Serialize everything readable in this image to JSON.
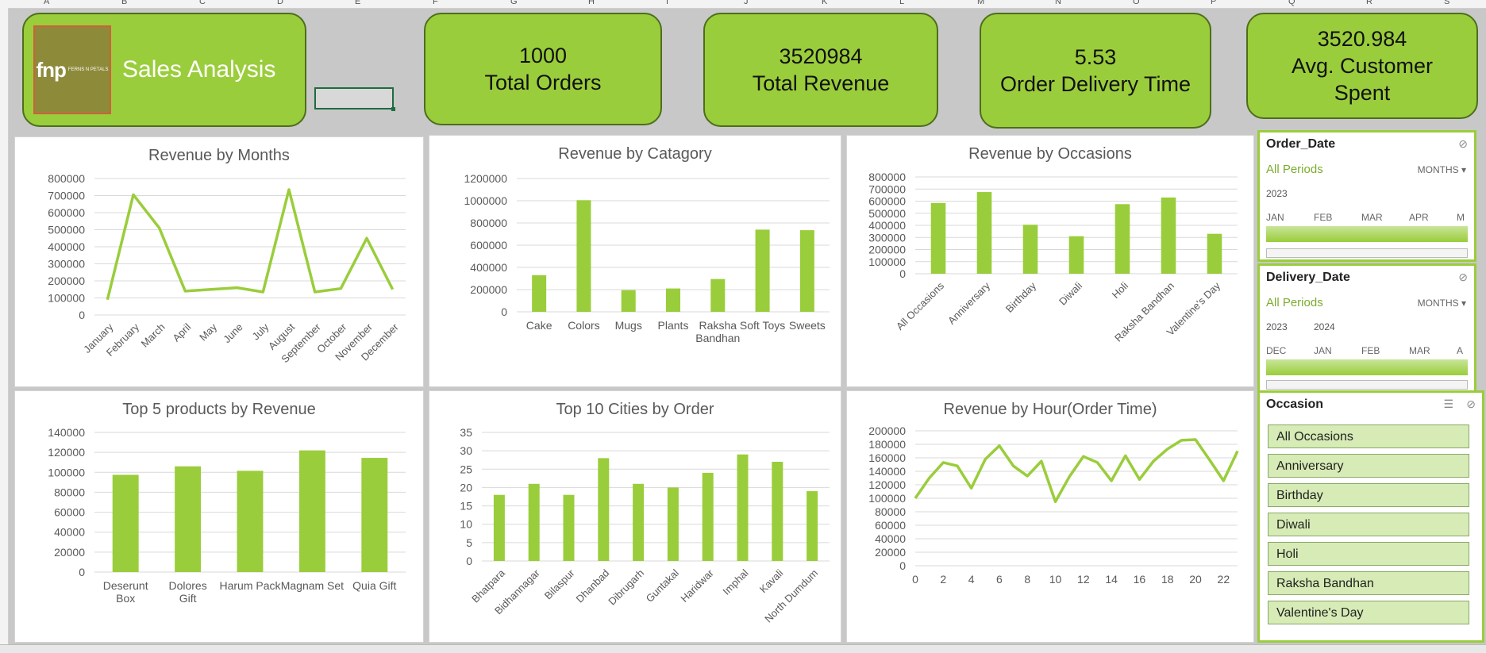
{
  "sheet": {
    "columns": [
      "A",
      "B",
      "C",
      "D",
      "E",
      "F",
      "G",
      "H",
      "I",
      "J",
      "K",
      "L",
      "M",
      "N",
      "O",
      "P",
      "Q",
      "R",
      "S"
    ]
  },
  "header": {
    "logo_text": "fnp",
    "logo_tagline": "FERNS N PETALS",
    "title": "Sales Analysis"
  },
  "kpis": [
    {
      "value": "1000",
      "label": "Total Orders"
    },
    {
      "value": "3520984",
      "label": "Total Revenue"
    },
    {
      "value": "5.53",
      "label": "Order Delivery Time"
    },
    {
      "value": "3520.984",
      "label": "Avg. Customer Spent"
    }
  ],
  "chart_data": [
    {
      "type": "line",
      "title": "Revenue by Months",
      "categories": [
        "January",
        "February",
        "March",
        "April",
        "May",
        "June",
        "July",
        "August",
        "September",
        "October",
        "November",
        "December"
      ],
      "values": [
        90000,
        705000,
        510000,
        140000,
        150000,
        160000,
        135000,
        735000,
        135000,
        155000,
        450000,
        150000
      ],
      "ylim": [
        0,
        800000
      ],
      "yticks": [
        "800000",
        "700000",
        "600000",
        "500000",
        "400000",
        "300000",
        "200000",
        "100000",
        "0"
      ],
      "color": "#9acd3b"
    },
    {
      "type": "bar",
      "title": "Revenue by Catagory",
      "categories": [
        "Cake",
        "Colors",
        "Mugs",
        "Plants",
        "Raksha Bandhan",
        "Soft Toys",
        "Sweets"
      ],
      "values": [
        330000,
        1005000,
        195000,
        210000,
        295000,
        740000,
        735000
      ],
      "ylim": [
        0,
        1200000
      ],
      "yticks": [
        "1200000",
        "1000000",
        "800000",
        "600000",
        "400000",
        "200000",
        "0"
      ],
      "color": "#9acd3b"
    },
    {
      "type": "bar",
      "title": "Revenue by Occasions",
      "categories": [
        "All Occasions",
        "Anniversary",
        "Birthday",
        "Diwali",
        "Holi",
        "Raksha Bandhan",
        "Valentine's Day"
      ],
      "values": [
        585000,
        675000,
        405000,
        310000,
        575000,
        630000,
        330000
      ],
      "ylim": [
        0,
        800000
      ],
      "yticks": [
        "800000",
        "700000",
        "600000",
        "500000",
        "400000",
        "300000",
        "200000",
        "100000",
        "0"
      ],
      "color": "#9acd3b"
    },
    {
      "type": "bar",
      "title": "Top 5 products by Revenue",
      "categories": [
        "Deserunt Box",
        "Dolores Gift",
        "Harum Pack",
        "Magnam Set",
        "Quia Gift"
      ],
      "values": [
        97500,
        106000,
        101500,
        122000,
        114500
      ],
      "ylim": [
        0,
        140000
      ],
      "yticks": [
        "140000",
        "120000",
        "100000",
        "80000",
        "60000",
        "40000",
        "20000",
        "0"
      ],
      "color": "#9acd3b"
    },
    {
      "type": "bar",
      "title": "Top 10 Cities by Order",
      "categories": [
        "Bhatpara",
        "Bidhannagar",
        "Bilaspur",
        "Dhanbad",
        "Dibrugarh",
        "Guntakal",
        "Haridwar",
        "Imphal",
        "Kavali",
        "North Dumdum"
      ],
      "values": [
        18,
        21,
        18,
        28,
        21,
        20,
        24,
        29,
        27,
        19
      ],
      "ylim": [
        0,
        35
      ],
      "yticks": [
        "35",
        "30",
        "25",
        "20",
        "15",
        "10",
        "5",
        "0"
      ],
      "color": "#9acd3b"
    },
    {
      "type": "line",
      "title": "Revenue by Hour(Order Time)",
      "x": [
        0,
        1,
        2,
        3,
        4,
        5,
        6,
        7,
        8,
        9,
        10,
        11,
        12,
        13,
        14,
        15,
        16,
        17,
        18,
        19,
        20,
        21,
        22,
        23
      ],
      "values": [
        100000,
        130000,
        153000,
        148000,
        115000,
        158000,
        178000,
        148000,
        133000,
        155000,
        95000,
        132000,
        162000,
        153000,
        126000,
        163000,
        128000,
        155000,
        173000,
        186000,
        187000,
        157000,
        126000,
        170000
      ],
      "ylim": [
        0,
        200000
      ],
      "xticks": [
        "0",
        "2",
        "4",
        "6",
        "8",
        "10",
        "12",
        "14",
        "16",
        "18",
        "20",
        "22"
      ],
      "yticks": [
        "200000",
        "180000",
        "160000",
        "140000",
        "120000",
        "100000",
        "80000",
        "60000",
        "40000",
        "20000",
        "0"
      ],
      "color": "#9acd3b"
    }
  ],
  "slicers": {
    "order_date": {
      "title": "Order_Date",
      "all_periods": "All Periods",
      "level": "MONTHS",
      "years": [
        "2023"
      ],
      "months": [
        "JAN",
        "FEB",
        "MAR",
        "APR",
        "M"
      ]
    },
    "delivery_date": {
      "title": "Delivery_Date",
      "all_periods": "All Periods",
      "level": "MONTHS",
      "years": [
        "2023",
        "2024"
      ],
      "months": [
        "DEC",
        "JAN",
        "FEB",
        "MAR",
        "A"
      ]
    },
    "occasion": {
      "title": "Occasion",
      "items": [
        "All Occasions",
        "Anniversary",
        "Birthday",
        "Diwali",
        "Holi",
        "Raksha Bandhan",
        "Valentine's Day"
      ]
    }
  }
}
